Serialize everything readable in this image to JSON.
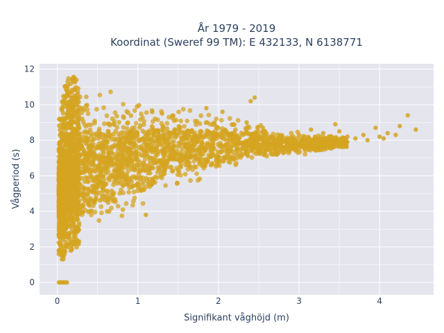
{
  "chart_data": {
    "type": "scatter",
    "title_line1": "År 1979 - 2019",
    "title_line2": "Koordinat (Sweref 99 TM): E 432133, N 6138771",
    "xlabel": "Signifikant våghöjd (m)",
    "ylabel": "Vågperiod (s)",
    "xlim": [
      -0.22,
      4.67
    ],
    "ylim": [
      -0.7,
      12.3
    ],
    "x_ticks": [
      0,
      1,
      2,
      3,
      4
    ],
    "y_ticks": [
      0,
      2,
      4,
      6,
      8,
      10,
      12
    ],
    "grid": true,
    "colors": {
      "marker": "#d4a420",
      "plot_background": "#e5e5ee",
      "grid": "#ffffff",
      "text": "#2a3f5f"
    },
    "envelope": {
      "x": [
        0.0,
        0.05,
        0.1,
        0.2,
        0.3,
        0.5,
        0.7,
        1.0,
        1.3,
        1.6,
        2.0,
        2.4,
        2.8,
        3.2,
        3.6
      ],
      "y_low": [
        1.2,
        1.1,
        1.4,
        1.8,
        2.2,
        2.7,
        3.1,
        3.8,
        4.6,
        5.3,
        6.0,
        6.5,
        6.9,
        7.2,
        7.5
      ],
      "y_high": [
        8.8,
        9.8,
        11.4,
        11.6,
        11.5,
        11.3,
        11.2,
        10.9,
        10.6,
        10.3,
        9.8,
        9.3,
        8.8,
        8.5,
        8.3
      ]
    },
    "outlier_points": {
      "x": [
        0.02,
        0.04,
        0.06,
        0.08,
        0.1,
        0.12,
        3.0,
        3.05,
        3.15,
        3.2,
        3.3,
        3.35,
        3.45,
        3.5,
        3.6,
        3.7,
        3.8,
        3.85,
        3.95,
        4.0,
        4.05,
        4.1,
        4.2,
        4.25,
        4.35,
        4.45,
        2.4,
        2.45,
        1.3,
        1.1,
        1.85,
        2.05,
        2.35,
        2.55
      ],
      "y": [
        0.0,
        0.0,
        0.0,
        0.0,
        0.0,
        0.0,
        8.3,
        8.1,
        8.6,
        8.0,
        8.4,
        8.1,
        8.9,
        8.5,
        8.2,
        8.1,
        8.3,
        8.0,
        8.7,
        8.2,
        8.1,
        8.4,
        8.3,
        8.8,
        9.4,
        8.6,
        10.2,
        10.4,
        9.5,
        3.8,
        9.8,
        9.6,
        9.0,
        8.7
      ]
    }
  }
}
